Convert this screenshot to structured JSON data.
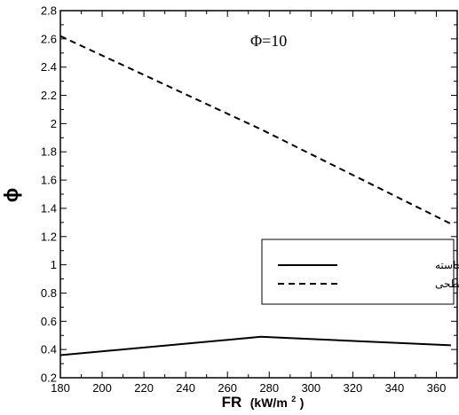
{
  "chart_data": {
    "type": "line",
    "annotation": "Φ=10",
    "xlabel": "FR",
    "xlabel_unit_prefix": "(kW/m",
    "xlabel_unit_sup": "2",
    "xlabel_unit_suffix": ")",
    "ylabel": "ϕ",
    "xlim": [
      180,
      370
    ],
    "ylim": [
      0.2,
      2.8
    ],
    "x_ticks": [
      180,
      200,
      220,
      240,
      260,
      280,
      300,
      320,
      340,
      360
    ],
    "x_tick_labels": [
      "180",
      "200",
      "220",
      "240",
      "260",
      "280",
      "300",
      "320",
      "340",
      "360"
    ],
    "y_ticks": [
      0.2,
      0.4,
      0.6,
      0.8,
      1.0,
      1.2,
      1.4,
      1.6,
      1.8,
      2.0,
      2.2,
      2.4,
      2.6,
      2.8
    ],
    "y_tick_labels": [
      "0.2",
      "0.4",
      "0.6",
      "0.8",
      "1",
      "1.2",
      "1.4",
      "1.6",
      "1.8",
      "2",
      "2.2",
      "2.4",
      "2.6",
      "2.8"
    ],
    "grid": false,
    "legend_position": "right, middle",
    "series": [
      {
        "name": "شعله‌ی برخاسته",
        "style": "solid",
        "color": "#000000",
        "x": [
          180,
          276,
          367
        ],
        "y": [
          0.36,
          0.49,
          0.43
        ]
      },
      {
        "name": "شعله‌ی سطحی",
        "style": "dashed",
        "color": "#000000",
        "x": [
          180,
          276,
          367
        ],
        "y": [
          2.62,
          1.96,
          1.29
        ]
      }
    ]
  }
}
